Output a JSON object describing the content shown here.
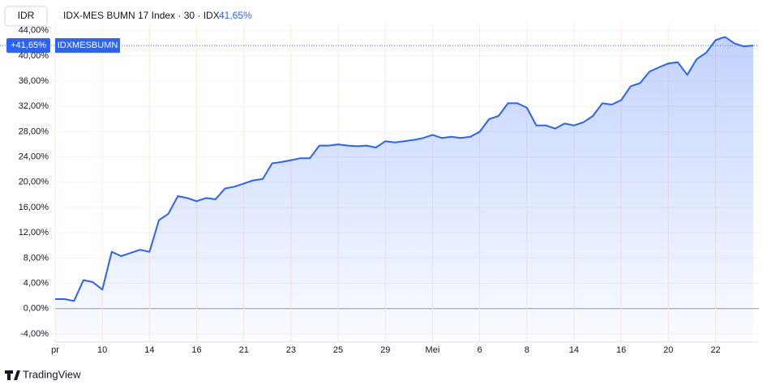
{
  "chart_data": {
    "type": "line",
    "currency": "IDR",
    "title": "IDX-MES BUMN 17 Index · 30 · IDX",
    "legend_value": "41,65%",
    "price_label": "+41,65%",
    "symbol": "IDXMESBUMN",
    "brand": "TradingView",
    "color": "#2962ff",
    "grid": true,
    "categories": [
      "pr",
      null,
      null,
      null,
      null,
      "10",
      null,
      null,
      null,
      null,
      "14",
      null,
      null,
      null,
      null,
      "16",
      null,
      null,
      null,
      null,
      "21",
      null,
      null,
      null,
      null,
      "23",
      null,
      null,
      null,
      null,
      "25",
      null,
      null,
      null,
      null,
      "29",
      null,
      null,
      null,
      null,
      "Mei",
      null,
      null,
      null,
      null,
      "6",
      null,
      null,
      null,
      null,
      "8",
      null,
      null,
      null,
      null,
      "14",
      null,
      null,
      null,
      null,
      "16",
      null,
      null,
      null,
      null,
      "20",
      null,
      null,
      null,
      null,
      "22",
      null,
      null,
      null,
      null
    ],
    "values": [
      1.5,
      1.5,
      1.2,
      4.5,
      4.2,
      3,
      9,
      8.3,
      8.8,
      9.3,
      9,
      14,
      15,
      17.8,
      17.5,
      17,
      17.5,
      17.3,
      19,
      19.3,
      19.8,
      20.3,
      20.5,
      23,
      23.2,
      23.5,
      23.8,
      23.8,
      25.8,
      25.8,
      26,
      25.8,
      25.7,
      25.8,
      25.5,
      26.5,
      26.3,
      26.5,
      26.7,
      27,
      27.5,
      27,
      27.2,
      27,
      27.2,
      28,
      30,
      30.5,
      32.5,
      32.5,
      31.8,
      29,
      29,
      28.5,
      29.3,
      29,
      29.5,
      30.5,
      32.5,
      32.3,
      33,
      35.2,
      35.7,
      37.5,
      38.2,
      38.8,
      39,
      37,
      39.5,
      40.5,
      42.5,
      43,
      42,
      41.5,
      41.65
    ],
    "ylim": [
      -5.3,
      45
    ],
    "yticks": [
      {
        "value": -4,
        "label": "-4,00%"
      },
      {
        "value": 0,
        "label": "0,00%"
      },
      {
        "value": 4,
        "label": "4,00%"
      },
      {
        "value": 8,
        "label": "8,00%"
      },
      {
        "value": 12,
        "label": "12,00%"
      },
      {
        "value": 16,
        "label": "16,00%"
      },
      {
        "value": 20,
        "label": "20,00%"
      },
      {
        "value": 24,
        "label": "24,00%"
      },
      {
        "value": 28,
        "label": "28,00%"
      },
      {
        "value": 32,
        "label": "32,00%"
      },
      {
        "value": 36,
        "label": "36,00%"
      },
      {
        "value": 40,
        "label": "40,00%"
      },
      {
        "value": 44,
        "label": "44,00%"
      }
    ]
  }
}
